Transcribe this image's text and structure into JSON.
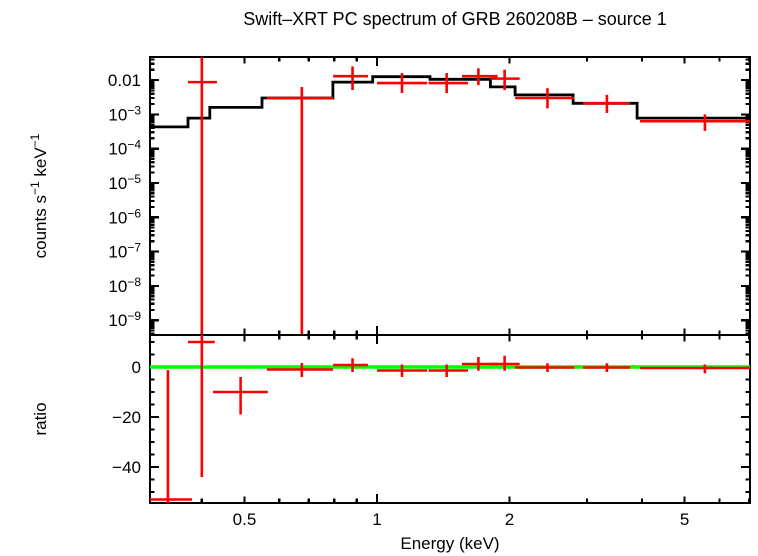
{
  "chart_data": {
    "type": "line",
    "title": "Swift–XRT PC spectrum of GRB 260208B – source 1",
    "xlabel": "Energy (keV)",
    "colors": {
      "model": "#000000",
      "data": "#ff0000",
      "reference_line": "#00ff00",
      "axes": "#000000",
      "background": "#ffffff"
    },
    "x_axis": {
      "scale": "log",
      "min": 0.305,
      "max": 7.04,
      "labeled_ticks": [
        {
          "v": 0.5,
          "text": "0.5"
        },
        {
          "v": 1,
          "text": "1"
        },
        {
          "v": 2,
          "text": "2"
        },
        {
          "v": 5,
          "text": "5"
        }
      ],
      "major_ticks": [
        1
      ],
      "minor_ticks": [
        0.4,
        0.5,
        0.6,
        0.7,
        0.8,
        0.9,
        2,
        3,
        4,
        5,
        6,
        7
      ]
    },
    "panels": [
      {
        "name": "spectrum",
        "ylabel_parts": [
          {
            "t": "counts s"
          },
          {
            "t": "−1",
            "sup": true
          },
          {
            "t": " keV"
          },
          {
            "t": "−1",
            "sup": true
          }
        ],
        "y_axis": {
          "scale": "log",
          "min": 3.7e-10,
          "max": 0.047,
          "labeled_ticks": [
            {
              "v": 0.01,
              "text": "0.01"
            },
            {
              "v": 0.001,
              "exp": "−3"
            },
            {
              "v": 0.0001,
              "exp": "−4"
            },
            {
              "v": 1e-05,
              "exp": "−5"
            },
            {
              "v": 1e-06,
              "exp": "−6"
            },
            {
              "v": 1e-07,
              "exp": "−7"
            },
            {
              "v": 1e-08,
              "exp": "−8"
            },
            {
              "v": 1e-09,
              "exp": "−9"
            }
          ]
        },
        "model_step": {
          "bin_edges_kev": [
            0.305,
            0.372,
            0.417,
            0.548,
            0.794,
            0.978,
            1.32,
            1.81,
            2.06,
            2.79,
            3.9,
            7.04
          ],
          "values": [
            0.00043,
            0.00078,
            0.0016,
            0.003,
            0.0087,
            0.0125,
            0.0105,
            0.0063,
            0.0037,
            0.0021,
            0.00078
          ]
        },
        "points": [
          {
            "e": 0.4,
            "e_lo": 0.372,
            "e_hi": 0.433,
            "v": 0.0087,
            "v_hi": null,
            "v_lo": null,
            "clip_hi": true,
            "clip_lo": true
          },
          {
            "e": 0.675,
            "e_lo": 0.562,
            "e_hi": 0.795,
            "v": 0.003,
            "v_hi": 0.0063,
            "v_lo": null,
            "clip_lo": true
          },
          {
            "e": 0.88,
            "e_lo": 0.795,
            "e_hi": 0.954,
            "v": 0.013,
            "v_hi": 0.025,
            "v_lo": 0.0051
          },
          {
            "e": 1.14,
            "e_lo": 1.0,
            "e_hi": 1.3,
            "v": 0.0082,
            "v_hi": 0.016,
            "v_lo": 0.0042
          },
          {
            "e": 1.44,
            "e_lo": 1.31,
            "e_hi": 1.61,
            "v": 0.0082,
            "v_hi": 0.016,
            "v_lo": 0.0042
          },
          {
            "e": 1.7,
            "e_lo": 1.56,
            "e_hi": 1.88,
            "v": 0.013,
            "v_hi": 0.022,
            "v_lo": 0.0071
          },
          {
            "e": 1.95,
            "e_lo": 1.81,
            "e_hi": 2.11,
            "v": 0.011,
            "v_hi": 0.02,
            "v_lo": 0.0051
          },
          {
            "e": 2.44,
            "e_lo": 2.06,
            "e_hi": 2.81,
            "v": 0.003,
            "v_hi": 0.0058,
            "v_lo": 0.0015
          },
          {
            "e": 3.33,
            "e_lo": 2.94,
            "e_hi": 3.76,
            "v": 0.0021,
            "v_hi": 0.0037,
            "v_lo": 0.0011
          },
          {
            "e": 5.56,
            "e_lo": 3.96,
            "e_hi": 7.04,
            "v": 0.00063,
            "v_hi": 0.001,
            "v_lo": 0.00033
          }
        ]
      },
      {
        "name": "ratio",
        "ylabel": "ratio",
        "y_axis": {
          "scale": "linear",
          "min": -54.4,
          "max": 12.8,
          "labeled_ticks": [
            {
              "v": 0,
              "text": "0"
            },
            {
              "v": -20,
              "text": "−20"
            },
            {
              "v": -40,
              "text": "−40"
            }
          ],
          "minor_step": 5
        },
        "reference_line": {
          "v": 0
        },
        "points": [
          {
            "e": 0.335,
            "e_lo": 0.305,
            "e_hi": 0.38,
            "v": -53,
            "v_hi": -1.2,
            "v_lo": null,
            "clip_lo": true
          },
          {
            "e": 0.4,
            "e_lo": 0.372,
            "e_hi": 0.428,
            "v": 10,
            "v_hi": null,
            "v_lo": -44,
            "clip_hi": true
          },
          {
            "e": 0.49,
            "e_lo": 0.424,
            "e_hi": 0.565,
            "v": -10,
            "v_hi": -4,
            "v_lo": -19
          },
          {
            "e": 0.675,
            "e_lo": 0.562,
            "e_hi": 0.795,
            "v": -1.0,
            "v_hi": 1.6,
            "v_lo": -4.0
          },
          {
            "e": 0.88,
            "e_lo": 0.795,
            "e_hi": 0.954,
            "v": 0.8,
            "v_hi": 3.5,
            "v_lo": -2.0
          },
          {
            "e": 1.14,
            "e_lo": 1.0,
            "e_hi": 1.3,
            "v": -1.4,
            "v_hi": 1.0,
            "v_lo": -4.0
          },
          {
            "e": 1.44,
            "e_lo": 1.31,
            "e_hi": 1.61,
            "v": -1.4,
            "v_hi": 1.0,
            "v_lo": -4.0
          },
          {
            "e": 1.7,
            "e_lo": 1.56,
            "e_hi": 1.88,
            "v": 1.2,
            "v_hi": 4.0,
            "v_lo": -1.5
          },
          {
            "e": 1.95,
            "e_lo": 1.81,
            "e_hi": 2.11,
            "v": 1.2,
            "v_hi": 4.5,
            "v_lo": -1.5
          },
          {
            "e": 2.44,
            "e_lo": 2.06,
            "e_hi": 2.81,
            "v": -0.2,
            "v_hi": 1.5,
            "v_lo": -2.0
          },
          {
            "e": 3.33,
            "e_lo": 2.94,
            "e_hi": 3.76,
            "v": -0.2,
            "v_hi": 1.5,
            "v_lo": -2.0
          },
          {
            "e": 5.56,
            "e_lo": 3.96,
            "e_hi": 7.04,
            "v": -0.4,
            "v_hi": 1.0,
            "v_lo": -2.5
          }
        ]
      }
    ]
  }
}
